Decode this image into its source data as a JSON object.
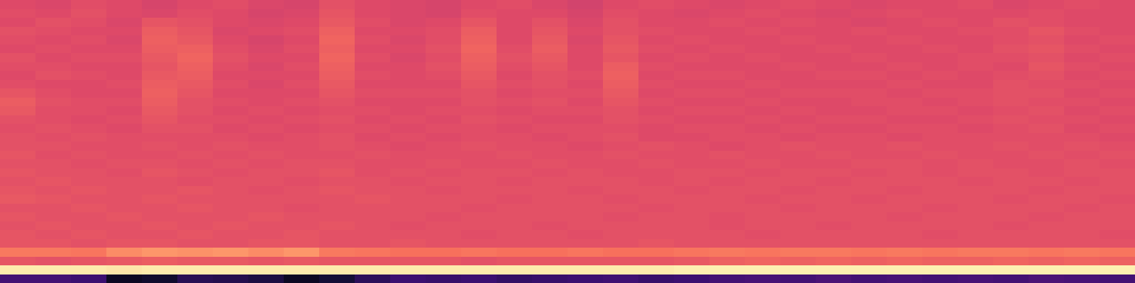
{
  "chart_data": {
    "type": "heatmap",
    "tick_labels": false,
    "zlim": [
      0,
      1
    ],
    "cells": [
      [
        0.6,
        0.59,
        0.61,
        0.6,
        0.58,
        0.6,
        0.61,
        0.59,
        0.58,
        0.62,
        0.6,
        0.59,
        0.58,
        0.6,
        0.61,
        0.59,
        0.57,
        0.6,
        0.61,
        0.6,
        0.59,
        0.6,
        0.61,
        0.6,
        0.59,
        0.6,
        0.6,
        0.61,
        0.59,
        0.6,
        0.61,
        0.6
      ],
      [
        0.61,
        0.6,
        0.62,
        0.6,
        0.59,
        0.61,
        0.6,
        0.58,
        0.59,
        0.63,
        0.6,
        0.59,
        0.58,
        0.61,
        0.6,
        0.6,
        0.58,
        0.61,
        0.6,
        0.59,
        0.6,
        0.61,
        0.6,
        0.59,
        0.6,
        0.61,
        0.6,
        0.6,
        0.6,
        0.61,
        0.6,
        0.6
      ],
      [
        0.6,
        0.62,
        0.61,
        0.59,
        0.63,
        0.62,
        0.6,
        0.59,
        0.6,
        0.64,
        0.61,
        0.59,
        0.6,
        0.63,
        0.6,
        0.62,
        0.59,
        0.62,
        0.6,
        0.6,
        0.61,
        0.6,
        0.61,
        0.6,
        0.59,
        0.6,
        0.61,
        0.6,
        0.62,
        0.61,
        0.6,
        0.6
      ],
      [
        0.62,
        0.61,
        0.6,
        0.6,
        0.65,
        0.63,
        0.59,
        0.6,
        0.61,
        0.66,
        0.6,
        0.6,
        0.61,
        0.65,
        0.6,
        0.63,
        0.6,
        0.62,
        0.61,
        0.6,
        0.6,
        0.61,
        0.6,
        0.6,
        0.61,
        0.6,
        0.6,
        0.61,
        0.61,
        0.63,
        0.61,
        0.6
      ],
      [
        0.61,
        0.6,
        0.61,
        0.59,
        0.66,
        0.64,
        0.6,
        0.58,
        0.6,
        0.67,
        0.61,
        0.59,
        0.61,
        0.66,
        0.6,
        0.64,
        0.59,
        0.63,
        0.6,
        0.61,
        0.6,
        0.6,
        0.61,
        0.6,
        0.6,
        0.61,
        0.6,
        0.6,
        0.61,
        0.62,
        0.6,
        0.61
      ],
      [
        0.6,
        0.61,
        0.6,
        0.6,
        0.65,
        0.66,
        0.61,
        0.59,
        0.61,
        0.66,
        0.6,
        0.6,
        0.62,
        0.67,
        0.61,
        0.65,
        0.6,
        0.64,
        0.61,
        0.6,
        0.61,
        0.6,
        0.6,
        0.61,
        0.6,
        0.6,
        0.61,
        0.6,
        0.62,
        0.63,
        0.61,
        0.6
      ],
      [
        0.62,
        0.6,
        0.61,
        0.61,
        0.64,
        0.67,
        0.62,
        0.6,
        0.6,
        0.67,
        0.61,
        0.59,
        0.61,
        0.66,
        0.62,
        0.64,
        0.6,
        0.63,
        0.6,
        0.61,
        0.6,
        0.61,
        0.6,
        0.6,
        0.61,
        0.6,
        0.6,
        0.61,
        0.61,
        0.62,
        0.6,
        0.61
      ],
      [
        0.61,
        0.61,
        0.6,
        0.6,
        0.63,
        0.66,
        0.61,
        0.59,
        0.61,
        0.66,
        0.6,
        0.6,
        0.62,
        0.65,
        0.61,
        0.63,
        0.6,
        0.65,
        0.61,
        0.6,
        0.6,
        0.6,
        0.61,
        0.6,
        0.6,
        0.61,
        0.6,
        0.61,
        0.6,
        0.63,
        0.61,
        0.6
      ],
      [
        0.6,
        0.62,
        0.61,
        0.6,
        0.64,
        0.65,
        0.6,
        0.6,
        0.6,
        0.65,
        0.61,
        0.6,
        0.61,
        0.64,
        0.6,
        0.62,
        0.61,
        0.66,
        0.6,
        0.61,
        0.61,
        0.6,
        0.6,
        0.61,
        0.61,
        0.6,
        0.61,
        0.6,
        0.61,
        0.62,
        0.6,
        0.61
      ],
      [
        0.61,
        0.6,
        0.6,
        0.61,
        0.65,
        0.64,
        0.61,
        0.59,
        0.61,
        0.64,
        0.6,
        0.6,
        0.6,
        0.63,
        0.61,
        0.62,
        0.6,
        0.65,
        0.61,
        0.6,
        0.6,
        0.61,
        0.6,
        0.6,
        0.6,
        0.61,
        0.6,
        0.6,
        0.62,
        0.61,
        0.61,
        0.6
      ],
      [
        0.63,
        0.61,
        0.6,
        0.6,
        0.66,
        0.63,
        0.6,
        0.6,
        0.6,
        0.63,
        0.61,
        0.61,
        0.61,
        0.62,
        0.6,
        0.61,
        0.61,
        0.64,
        0.6,
        0.61,
        0.61,
        0.6,
        0.61,
        0.61,
        0.61,
        0.6,
        0.61,
        0.61,
        0.62,
        0.62,
        0.6,
        0.61
      ],
      [
        0.65,
        0.62,
        0.61,
        0.61,
        0.65,
        0.62,
        0.61,
        0.6,
        0.61,
        0.62,
        0.6,
        0.6,
        0.6,
        0.62,
        0.61,
        0.62,
        0.6,
        0.63,
        0.61,
        0.6,
        0.6,
        0.61,
        0.6,
        0.6,
        0.61,
        0.61,
        0.6,
        0.61,
        0.62,
        0.61,
        0.61,
        0.6
      ],
      [
        0.64,
        0.61,
        0.61,
        0.6,
        0.64,
        0.62,
        0.6,
        0.61,
        0.6,
        0.61,
        0.61,
        0.6,
        0.61,
        0.61,
        0.6,
        0.61,
        0.61,
        0.62,
        0.6,
        0.61,
        0.61,
        0.6,
        0.61,
        0.6,
        0.6,
        0.61,
        0.61,
        0.6,
        0.61,
        0.62,
        0.6,
        0.61
      ],
      [
        0.62,
        0.61,
        0.6,
        0.61,
        0.63,
        0.61,
        0.61,
        0.6,
        0.61,
        0.62,
        0.6,
        0.61,
        0.6,
        0.62,
        0.61,
        0.6,
        0.6,
        0.62,
        0.61,
        0.6,
        0.6,
        0.61,
        0.6,
        0.61,
        0.61,
        0.6,
        0.6,
        0.61,
        0.62,
        0.61,
        0.61,
        0.6
      ],
      [
        0.61,
        0.62,
        0.61,
        0.6,
        0.62,
        0.62,
        0.6,
        0.61,
        0.6,
        0.61,
        0.61,
        0.6,
        0.61,
        0.61,
        0.6,
        0.61,
        0.61,
        0.61,
        0.6,
        0.61,
        0.61,
        0.6,
        0.61,
        0.6,
        0.6,
        0.61,
        0.61,
        0.6,
        0.61,
        0.62,
        0.6,
        0.61
      ],
      [
        0.62,
        0.61,
        0.62,
        0.61,
        0.61,
        0.61,
        0.61,
        0.6,
        0.61,
        0.62,
        0.6,
        0.61,
        0.6,
        0.61,
        0.61,
        0.6,
        0.61,
        0.62,
        0.6,
        0.6,
        0.61,
        0.61,
        0.6,
        0.61,
        0.61,
        0.6,
        0.61,
        0.61,
        0.61,
        0.61,
        0.61,
        0.6
      ],
      [
        0.62,
        0.62,
        0.61,
        0.61,
        0.62,
        0.61,
        0.62,
        0.61,
        0.61,
        0.62,
        0.61,
        0.6,
        0.61,
        0.62,
        0.61,
        0.61,
        0.6,
        0.61,
        0.62,
        0.61,
        0.6,
        0.61,
        0.62,
        0.61,
        0.61,
        0.62,
        0.61,
        0.61,
        0.62,
        0.61,
        0.62,
        0.61
      ],
      [
        0.63,
        0.61,
        0.62,
        0.61,
        0.61,
        0.62,
        0.61,
        0.62,
        0.61,
        0.61,
        0.62,
        0.61,
        0.61,
        0.61,
        0.62,
        0.61,
        0.61,
        0.62,
        0.61,
        0.61,
        0.62,
        0.61,
        0.61,
        0.62,
        0.61,
        0.61,
        0.62,
        0.61,
        0.61,
        0.62,
        0.61,
        0.62
      ],
      [
        0.62,
        0.62,
        0.61,
        0.62,
        0.62,
        0.61,
        0.62,
        0.61,
        0.62,
        0.62,
        0.61,
        0.61,
        0.62,
        0.61,
        0.61,
        0.62,
        0.61,
        0.61,
        0.62,
        0.61,
        0.61,
        0.62,
        0.61,
        0.61,
        0.62,
        0.62,
        0.61,
        0.62,
        0.61,
        0.61,
        0.62,
        0.61
      ],
      [
        0.63,
        0.62,
        0.62,
        0.61,
        0.63,
        0.62,
        0.61,
        0.62,
        0.62,
        0.63,
        0.61,
        0.62,
        0.61,
        0.62,
        0.62,
        0.61,
        0.62,
        0.61,
        0.61,
        0.62,
        0.62,
        0.61,
        0.62,
        0.62,
        0.61,
        0.62,
        0.61,
        0.62,
        0.62,
        0.61,
        0.62,
        0.62
      ],
      [
        0.62,
        0.63,
        0.62,
        0.62,
        0.62,
        0.61,
        0.62,
        0.62,
        0.61,
        0.62,
        0.62,
        0.61,
        0.62,
        0.62,
        0.61,
        0.62,
        0.62,
        0.62,
        0.61,
        0.62,
        0.61,
        0.62,
        0.62,
        0.61,
        0.62,
        0.62,
        0.62,
        0.61,
        0.62,
        0.62,
        0.61,
        0.62
      ],
      [
        0.63,
        0.62,
        0.63,
        0.62,
        0.62,
        0.63,
        0.62,
        0.61,
        0.62,
        0.63,
        0.62,
        0.62,
        0.61,
        0.62,
        0.62,
        0.62,
        0.61,
        0.62,
        0.62,
        0.61,
        0.62,
        0.62,
        0.61,
        0.62,
        0.62,
        0.61,
        0.62,
        0.62,
        0.62,
        0.61,
        0.62,
        0.62
      ],
      [
        0.64,
        0.63,
        0.62,
        0.62,
        0.63,
        0.62,
        0.62,
        0.62,
        0.62,
        0.62,
        0.63,
        0.62,
        0.62,
        0.62,
        0.61,
        0.62,
        0.62,
        0.61,
        0.62,
        0.62,
        0.62,
        0.61,
        0.62,
        0.62,
        0.61,
        0.62,
        0.62,
        0.62,
        0.61,
        0.62,
        0.62,
        0.61
      ],
      [
        0.62,
        0.62,
        0.63,
        0.62,
        0.62,
        0.63,
        0.62,
        0.62,
        0.61,
        0.62,
        0.62,
        0.62,
        0.62,
        0.61,
        0.62,
        0.62,
        0.62,
        0.62,
        0.61,
        0.62,
        0.62,
        0.62,
        0.61,
        0.62,
        0.62,
        0.62,
        0.61,
        0.62,
        0.62,
        0.62,
        0.61,
        0.62
      ],
      [
        0.63,
        0.62,
        0.62,
        0.63,
        0.62,
        0.62,
        0.62,
        0.63,
        0.62,
        0.62,
        0.62,
        0.62,
        0.61,
        0.62,
        0.62,
        0.62,
        0.62,
        0.61,
        0.62,
        0.62,
        0.61,
        0.62,
        0.62,
        0.62,
        0.62,
        0.61,
        0.62,
        0.62,
        0.62,
        0.61,
        0.62,
        0.62
      ],
      [
        0.62,
        0.63,
        0.62,
        0.62,
        0.63,
        0.62,
        0.63,
        0.62,
        0.62,
        0.63,
        0.62,
        0.61,
        0.62,
        0.62,
        0.62,
        0.61,
        0.62,
        0.62,
        0.62,
        0.62,
        0.61,
        0.62,
        0.62,
        0.61,
        0.62,
        0.62,
        0.62,
        0.62,
        0.61,
        0.62,
        0.62,
        0.62
      ],
      [
        0.63,
        0.62,
        0.63,
        0.62,
        0.62,
        0.63,
        0.62,
        0.62,
        0.63,
        0.62,
        0.62,
        0.62,
        0.62,
        0.61,
        0.62,
        0.62,
        0.61,
        0.62,
        0.62,
        0.62,
        0.62,
        0.61,
        0.62,
        0.62,
        0.62,
        0.62,
        0.61,
        0.62,
        0.62,
        0.62,
        0.62,
        0.61
      ],
      [
        0.63,
        0.63,
        0.62,
        0.63,
        0.63,
        0.62,
        0.62,
        0.63,
        0.63,
        0.62,
        0.62,
        0.63,
        0.62,
        0.62,
        0.62,
        0.62,
        0.62,
        0.62,
        0.63,
        0.62,
        0.62,
        0.62,
        0.62,
        0.62,
        0.62,
        0.62,
        0.62,
        0.62,
        0.62,
        0.62,
        0.62,
        0.62
      ],
      [
        0.72,
        0.72,
        0.71,
        0.76,
        0.78,
        0.77,
        0.78,
        0.76,
        0.78,
        0.72,
        0.71,
        0.7,
        0.7,
        0.71,
        0.7,
        0.7,
        0.71,
        0.7,
        0.7,
        0.71,
        0.72,
        0.71,
        0.72,
        0.72,
        0.71,
        0.72,
        0.71,
        0.72,
        0.72,
        0.71,
        0.72,
        0.71
      ],
      [
        0.63,
        0.62,
        0.63,
        0.64,
        0.65,
        0.64,
        0.64,
        0.63,
        0.64,
        0.63,
        0.63,
        0.63,
        0.63,
        0.62,
        0.63,
        0.63,
        0.63,
        0.63,
        0.63,
        0.64,
        0.66,
        0.67,
        0.66,
        0.67,
        0.66,
        0.67,
        0.66,
        0.66,
        0.67,
        0.66,
        0.67,
        0.66
      ],
      [
        0.96,
        0.96,
        0.96,
        0.95,
        0.96,
        0.96,
        0.96,
        0.96,
        0.96,
        0.96,
        0.96,
        0.96,
        0.96,
        0.96,
        0.96,
        0.96,
        0.96,
        0.96,
        0.96,
        0.97,
        0.97,
        0.97,
        0.97,
        0.97,
        0.97,
        0.97,
        0.97,
        0.97,
        0.97,
        0.97,
        0.97,
        0.97
      ],
      [
        0.22,
        0.22,
        0.2,
        0.06,
        0.08,
        0.15,
        0.14,
        0.12,
        0.06,
        0.1,
        0.16,
        0.2,
        0.19,
        0.2,
        0.18,
        0.19,
        0.2,
        0.21,
        0.19,
        0.2,
        0.22,
        0.23,
        0.22,
        0.24,
        0.22,
        0.23,
        0.22,
        0.23,
        0.22,
        0.24,
        0.23,
        0.22
      ]
    ]
  }
}
